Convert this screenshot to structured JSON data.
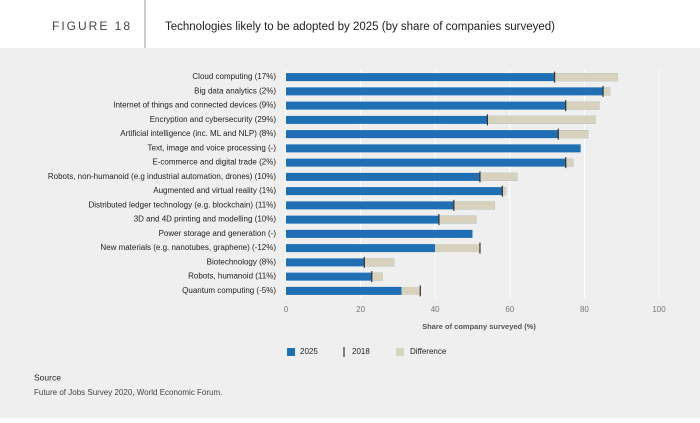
{
  "header": {
    "figure": "FIGURE 18",
    "title": "Technologies likely to be adopted by 2025 (by share of companies surveyed)"
  },
  "chart_data": {
    "type": "bar_marker",
    "orientation": "horizontal",
    "categories": [
      "Cloud computing (17%)",
      "Big data analytics (2%)",
      "Internet of things and connected devices (9%)",
      "Encryption and cybersecurity (29%)",
      "Artificial intelligence (inc. ML and NLP) (8%)",
      "Text, image and voice processing (-)",
      "E-commerce and digital trade (2%)",
      "Robots, non-humanoid (e.g industrial automation, drones) (10%)",
      "Augmented and virtual reality (1%)",
      "Distributed ledger technology (e.g. blockchain) (11%)",
      "3D and 4D printing and modelling (10%)",
      "Power storage and generation (-)",
      "New materials (e.g. nanotubes, graphene) (-12%)",
      "Biotechnology (8%)",
      "Robots, humanoid (11%)",
      "Quantum computing (-5%)"
    ],
    "series": [
      {
        "name": "2025",
        "color": "#1f6fb5",
        "values": [
          89,
          87,
          84,
          83,
          81,
          79,
          77,
          62,
          59,
          56,
          51,
          50,
          40,
          29,
          26,
          31
        ]
      },
      {
        "name": "2018",
        "color": "#333333",
        "values": [
          72,
          85,
          75,
          54,
          73,
          null,
          75,
          52,
          58,
          45,
          41,
          null,
          52,
          21,
          23,
          36
        ]
      }
    ],
    "difference_name": "Difference",
    "difference_color": "#d8d2bd",
    "xlabel": "Share of company surveyed (%)",
    "xlim": [
      0,
      100
    ],
    "xticks": [
      0,
      20,
      40,
      60,
      80,
      100
    ],
    "grid": true
  },
  "footer": {
    "source_label": "Source",
    "source": "Future of Jobs Survey 2020, World Economic Forum."
  }
}
